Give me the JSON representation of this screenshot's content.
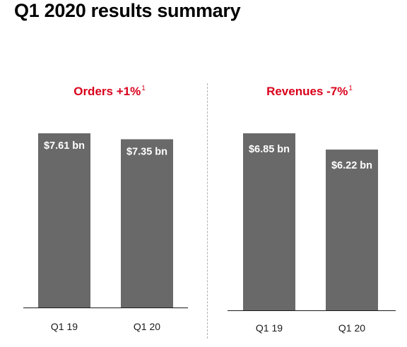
{
  "slide": {
    "title": "Q1 2020 results summary"
  },
  "colors": {
    "accent": "#d9001b",
    "bar": "#696969",
    "axis": "#1a1a1a"
  },
  "chart_data": [
    {
      "type": "bar",
      "title": "Orders +1%",
      "title_footnote": "1",
      "categories": [
        "Q1 19",
        "Q1 20"
      ],
      "values": [
        7.61,
        7.35
      ],
      "data_labels": [
        "$7.61 bn",
        "$7.35 bn"
      ],
      "ylim": [
        0,
        7.61
      ],
      "grid": false,
      "legend": "none"
    },
    {
      "type": "bar",
      "title": "Revenues -7%",
      "title_footnote": "1",
      "categories": [
        "Q1 19",
        "Q1 20"
      ],
      "values": [
        6.85,
        6.22
      ],
      "data_labels": [
        "$6.85 bn",
        "$6.22 bn"
      ],
      "ylim": [
        0,
        6.85
      ],
      "grid": false,
      "legend": "none"
    }
  ]
}
